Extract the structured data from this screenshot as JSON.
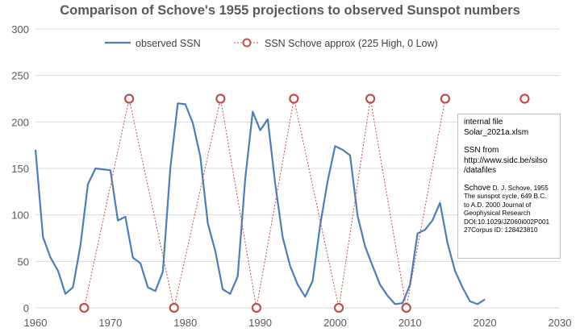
{
  "title": "Comparison of Schove's 1955 projections to observed Sunspot numbers",
  "colors": {
    "observed": "#4a7ebb",
    "schove": "#c0504d",
    "grid": "#d9d9d9",
    "axis_text": "#595959"
  },
  "note": {
    "line1": "internal file",
    "line2": "Solar_2021a.xlsm",
    "line3": "SSN from",
    "line4": "http://www.sidc.be/silso",
    "line5": "/datafiles",
    "ref_author": "Schove",
    "ref_title": " D. J. Schove, 1955",
    "ref_line2": "The sunspot cycle, 649 B.C.",
    "ref_line3": "to A.D. 2000  Journal of",
    "ref_line4": "Geophysical Research",
    "ref_line5": "DOI:10.1029/JZ060i002P001",
    "ref_line6": "27Corpus ID: 128423810"
  },
  "chart_data": {
    "type": "line",
    "title": "Comparison of Schove's 1955 projections to observed Sunspot numbers",
    "xlabel": "",
    "ylabel": "",
    "xlim": [
      1960,
      2030
    ],
    "ylim": [
      0,
      300
    ],
    "xticks": [
      "1960",
      "1970",
      "1980",
      "1990",
      "2000",
      "2010",
      "2020",
      "2030"
    ],
    "yticks": [
      "0",
      "50",
      "100",
      "150",
      "200",
      "250",
      "300"
    ],
    "grid": "horizontal",
    "legend_position": "top",
    "series": [
      {
        "name": "observed SSN",
        "style": "solid",
        "x": [
          1960,
          1961,
          1962,
          1963,
          1964,
          1965,
          1966,
          1967,
          1968,
          1969,
          1970,
          1971,
          1972,
          1973,
          1974,
          1975,
          1976,
          1977,
          1978,
          1979,
          1980,
          1981,
          1982,
          1983,
          1984,
          1985,
          1986,
          1987,
          1988,
          1989,
          1990,
          1991,
          1992,
          1993,
          1994,
          1995,
          1996,
          1997,
          1998,
          1999,
          2000,
          2001,
          2002,
          2003,
          2004,
          2005,
          2006,
          2007,
          2008,
          2009,
          2010,
          2011,
          2012,
          2013,
          2014,
          2015,
          2016,
          2017,
          2018,
          2019,
          2020
        ],
        "values": [
          170,
          76,
          54,
          40,
          15,
          22,
          67,
          133,
          150,
          149,
          148,
          94,
          98,
          54,
          48,
          22,
          18,
          39,
          150,
          220,
          219,
          199,
          163,
          91,
          61,
          20,
          15,
          34,
          139,
          211,
          191,
          203,
          134,
          76,
          45,
          25,
          12,
          29,
          89,
          136,
          174,
          170,
          164,
          99,
          66,
          45,
          25,
          13,
          4,
          5,
          25,
          80,
          84,
          94,
          113,
          70,
          40,
          22,
          7,
          4,
          9
        ]
      },
      {
        "name": "SSN Schove approx (225 High, 0 Low)",
        "style": "dotted-with-circle-markers",
        "x": [
          1966.5,
          1972.5,
          1978.5,
          1984.7,
          1989.5,
          1994.5,
          2000.5,
          2004.7,
          2009.5,
          2014.7,
          2025.3
        ],
        "values": [
          0,
          225,
          0,
          225,
          0,
          225,
          0,
          225,
          0,
          225,
          225
        ]
      }
    ]
  }
}
